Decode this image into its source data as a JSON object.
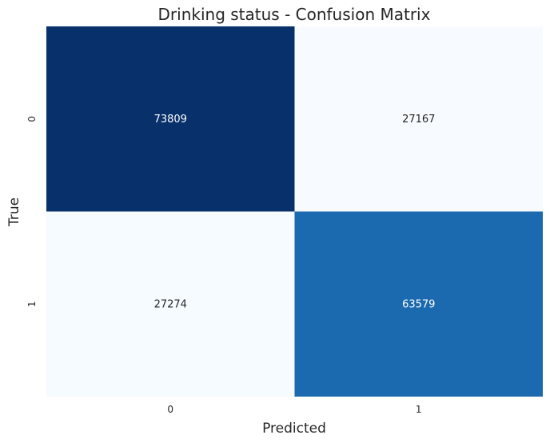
{
  "chart_data": {
    "type": "heatmap",
    "title": "Drinking status - Confusion Matrix",
    "xlabel": "Predicted",
    "ylabel": "True",
    "x_categories": [
      "0",
      "1"
    ],
    "y_categories": [
      "0",
      "1"
    ],
    "values": [
      [
        73809,
        27167
      ],
      [
        27274,
        63579
      ]
    ],
    "colormap": "Blues",
    "colorbar": false,
    "grid": false,
    "colors": {
      "low": "#f7fbff",
      "mid": "#1b69af",
      "high": "#08306b",
      "text_on_dark": "#ffffff",
      "text_on_light": "#262626"
    }
  }
}
